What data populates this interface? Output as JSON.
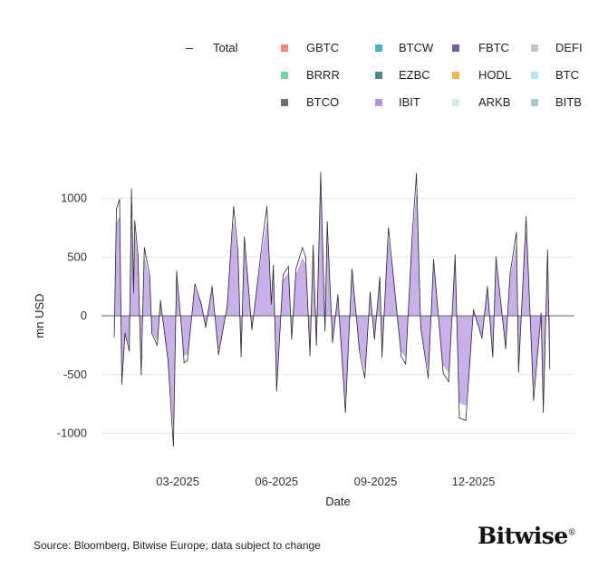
{
  "chart_data": {
    "type": "line",
    "title": "",
    "xlabel": "Date",
    "ylabel": "mn USD",
    "x_ticks": [
      "03-2025",
      "06-2025",
      "09-2025",
      "12-2025"
    ],
    "x_tick_dates": [
      "2025-03-01",
      "2025-06-01",
      "2025-09-01",
      "2025-12-01"
    ],
    "y_ticks": [
      -1000,
      -500,
      0,
      500,
      1000
    ],
    "ylim": [
      -1200,
      1250
    ],
    "xlim": [
      "2024-12-10",
      "2026-03-05"
    ],
    "grid": true,
    "legend_placement": "top",
    "legend": [
      {
        "name": "Total",
        "color": "#333333",
        "mark": "line"
      },
      {
        "name": "GBTC",
        "color": "#f08a7a"
      },
      {
        "name": "BTCW",
        "color": "#3fb8c4"
      },
      {
        "name": "FBTC",
        "color": "#7a5ea0"
      },
      {
        "name": "DEFI",
        "color": "#c4c4c4"
      },
      {
        "name": "BRRR",
        "color": "#6fd79a"
      },
      {
        "name": "EZBC",
        "color": "#4a8a90"
      },
      {
        "name": "HODL",
        "color": "#f3b44a"
      },
      {
        "name": "BTC",
        "color": "#b5e6ea"
      },
      {
        "name": "BTCO",
        "color": "#707070"
      },
      {
        "name": "IBIT",
        "color": "#b596e0"
      },
      {
        "name": "ARKB",
        "color": "#c6f2df"
      },
      {
        "name": "BITB",
        "color": "#a9c9cc"
      }
    ],
    "dates": [
      "2025-01-01",
      "2025-01-03",
      "2025-01-06",
      "2025-01-08",
      "2025-01-11",
      "2025-01-15",
      "2025-01-17",
      "2025-01-19",
      "2025-01-20",
      "2025-01-23",
      "2025-01-26",
      "2025-01-29",
      "2025-02-03",
      "2025-02-05",
      "2025-02-10",
      "2025-02-13",
      "2025-02-20",
      "2025-02-25",
      "2025-02-28",
      "2025-03-05",
      "2025-03-07",
      "2025-03-10",
      "2025-03-17",
      "2025-03-23",
      "2025-03-27",
      "2025-04-02",
      "2025-04-08",
      "2025-04-16",
      "2025-04-22",
      "2025-04-26",
      "2025-04-29",
      "2025-05-02",
      "2025-05-09",
      "2025-05-19",
      "2025-05-23",
      "2025-05-27",
      "2025-05-29",
      "2025-06-01",
      "2025-06-07",
      "2025-06-12",
      "2025-06-15",
      "2025-06-19",
      "2025-06-25",
      "2025-06-28",
      "2025-07-02",
      "2025-07-05",
      "2025-07-08",
      "2025-07-12",
      "2025-07-16",
      "2025-07-18",
      "2025-07-23",
      "2025-07-28",
      "2025-08-04",
      "2025-08-10",
      "2025-08-17",
      "2025-08-22",
      "2025-08-27",
      "2025-08-31",
      "2025-09-05",
      "2025-09-07",
      "2025-09-13",
      "2025-09-18",
      "2025-09-25",
      "2025-09-29",
      "2025-10-05",
      "2025-10-09",
      "2025-10-13",
      "2025-10-20",
      "2025-10-25",
      "2025-11-03",
      "2025-11-08",
      "2025-11-14",
      "2025-11-18",
      "2025-11-24",
      "2025-12-01",
      "2025-12-09",
      "2025-12-14",
      "2025-12-19",
      "2025-12-22",
      "2025-12-31",
      "2026-01-04",
      "2026-01-10",
      "2026-01-12",
      "2026-01-19",
      "2026-01-26",
      "2026-02-02",
      "2026-02-04",
      "2026-02-08",
      "2026-02-10"
    ],
    "series": [
      {
        "name": "Total",
        "values": [
          -180,
          910,
          990,
          -580,
          -150,
          -300,
          1080,
          200,
          810,
          520,
          -500,
          580,
          340,
          -150,
          -250,
          130,
          -380,
          -1110,
          380,
          -150,
          -400,
          -380,
          270,
          100,
          -100,
          250,
          -330,
          80,
          930,
          550,
          -350,
          670,
          -120,
          660,
          930,
          100,
          430,
          -640,
          350,
          420,
          -200,
          400,
          580,
          500,
          -340,
          600,
          -250,
          1220,
          -130,
          800,
          -230,
          180,
          -820,
          400,
          -300,
          -530,
          200,
          -200,
          330,
          -350,
          750,
          300,
          -350,
          -410,
          670,
          1210,
          -100,
          -530,
          480,
          -490,
          -560,
          520,
          -870,
          -890,
          50,
          -190,
          250,
          -350,
          500,
          -280,
          350,
          710,
          -480,
          840,
          -720,
          20,
          -820,
          560,
          -450
        ]
      },
      {
        "name": "IBIT",
        "values": [
          -150,
          780,
          840,
          -490,
          -130,
          -250,
          920,
          170,
          690,
          440,
          -420,
          490,
          290,
          -130,
          -210,
          110,
          -320,
          -940,
          320,
          -130,
          -340,
          -320,
          230,
          90,
          -90,
          210,
          -280,
          70,
          790,
          470,
          -300,
          570,
          -100,
          560,
          790,
          90,
          370,
          -540,
          300,
          360,
          -170,
          340,
          490,
          430,
          -290,
          510,
          -210,
          1040,
          -110,
          680,
          -200,
          150,
          -700,
          340,
          -260,
          -450,
          170,
          -170,
          280,
          -300,
          640,
          260,
          -300,
          -350,
          570,
          1030,
          -90,
          -450,
          410,
          -420,
          -480,
          440,
          -740,
          -760,
          40,
          -160,
          210,
          -300,
          430,
          -240,
          300,
          600,
          -410,
          710,
          -610,
          20,
          -700,
          480,
          -380
        ]
      }
    ]
  },
  "footer": {
    "source": "Source: Bloomberg, Bitwise Europe; data subject to change",
    "logo": "Bitwise"
  }
}
